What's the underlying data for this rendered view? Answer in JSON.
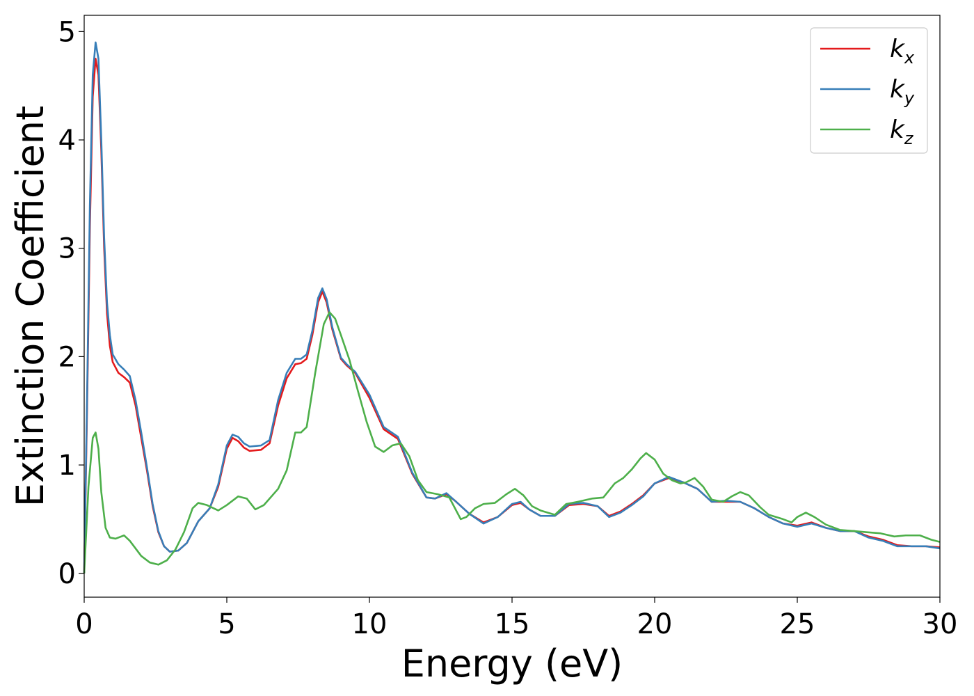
{
  "chart_data": {
    "type": "line",
    "xlabel": "Energy (eV)",
    "ylabel": "Extinction Coefficient",
    "xlim": [
      0,
      30
    ],
    "ylim": [
      -0.22,
      5.15
    ],
    "xticks": [
      0,
      5,
      10,
      15,
      20,
      25,
      30
    ],
    "yticks": [
      0,
      1,
      2,
      3,
      4,
      5
    ],
    "grid": false,
    "legend_position": "top-right",
    "series": [
      {
        "name": "k_x",
        "legend": {
          "base": "k",
          "sub": "x"
        },
        "color": "#e41a1c",
        "points": [
          [
            0,
            0
          ],
          [
            0.1,
            1.5
          ],
          [
            0.2,
            3.2
          ],
          [
            0.3,
            4.4
          ],
          [
            0.4,
            4.75
          ],
          [
            0.5,
            4.6
          ],
          [
            0.6,
            3.9
          ],
          [
            0.7,
            3.0
          ],
          [
            0.8,
            2.4
          ],
          [
            0.9,
            2.1
          ],
          [
            1.0,
            1.95
          ],
          [
            1.2,
            1.85
          ],
          [
            1.4,
            1.81
          ],
          [
            1.6,
            1.76
          ],
          [
            1.8,
            1.55
          ],
          [
            2.0,
            1.25
          ],
          [
            2.2,
            0.95
          ],
          [
            2.4,
            0.62
          ],
          [
            2.6,
            0.38
          ],
          [
            2.8,
            0.25
          ],
          [
            3.0,
            0.2
          ],
          [
            3.3,
            0.21
          ],
          [
            3.6,
            0.28
          ],
          [
            4.0,
            0.48
          ],
          [
            4.4,
            0.6
          ],
          [
            4.7,
            0.8
          ],
          [
            5.0,
            1.15
          ],
          [
            5.2,
            1.25
          ],
          [
            5.4,
            1.22
          ],
          [
            5.6,
            1.16
          ],
          [
            5.8,
            1.13
          ],
          [
            6.2,
            1.14
          ],
          [
            6.5,
            1.2
          ],
          [
            6.8,
            1.55
          ],
          [
            7.1,
            1.8
          ],
          [
            7.4,
            1.93
          ],
          [
            7.6,
            1.94
          ],
          [
            7.8,
            1.98
          ],
          [
            8.0,
            2.2
          ],
          [
            8.2,
            2.5
          ],
          [
            8.35,
            2.6
          ],
          [
            8.5,
            2.5
          ],
          [
            8.7,
            2.25
          ],
          [
            9.0,
            1.98
          ],
          [
            9.2,
            1.92
          ],
          [
            9.5,
            1.85
          ],
          [
            10.0,
            1.62
          ],
          [
            10.5,
            1.33
          ],
          [
            11.0,
            1.24
          ],
          [
            11.5,
            0.92
          ],
          [
            12.0,
            0.7
          ],
          [
            12.3,
            0.69
          ],
          [
            12.7,
            0.73
          ],
          [
            13.0,
            0.67
          ],
          [
            13.5,
            0.55
          ],
          [
            14.0,
            0.47
          ],
          [
            14.5,
            0.52
          ],
          [
            15.0,
            0.63
          ],
          [
            15.3,
            0.65
          ],
          [
            15.6,
            0.59
          ],
          [
            16.0,
            0.53
          ],
          [
            16.5,
            0.53
          ],
          [
            17.0,
            0.63
          ],
          [
            17.5,
            0.64
          ],
          [
            18.0,
            0.62
          ],
          [
            18.4,
            0.53
          ],
          [
            18.8,
            0.57
          ],
          [
            19.2,
            0.64
          ],
          [
            19.6,
            0.72
          ],
          [
            20.0,
            0.83
          ],
          [
            20.5,
            0.88
          ],
          [
            21.0,
            0.84
          ],
          [
            21.5,
            0.78
          ],
          [
            22.0,
            0.66
          ],
          [
            22.5,
            0.66
          ],
          [
            23.0,
            0.66
          ],
          [
            23.5,
            0.6
          ],
          [
            24.0,
            0.52
          ],
          [
            24.5,
            0.46
          ],
          [
            25.0,
            0.44
          ],
          [
            25.5,
            0.47
          ],
          [
            26.0,
            0.42
          ],
          [
            26.5,
            0.39
          ],
          [
            27.0,
            0.39
          ],
          [
            27.5,
            0.34
          ],
          [
            28.0,
            0.31
          ],
          [
            28.5,
            0.26
          ],
          [
            29.0,
            0.25
          ],
          [
            29.5,
            0.25
          ],
          [
            30.0,
            0.24
          ]
        ]
      },
      {
        "name": "k_y",
        "legend": {
          "base": "k",
          "sub": "y"
        },
        "color": "#377eb8",
        "points": [
          [
            0,
            0
          ],
          [
            0.1,
            1.6
          ],
          [
            0.2,
            3.4
          ],
          [
            0.3,
            4.6
          ],
          [
            0.4,
            4.9
          ],
          [
            0.5,
            4.75
          ],
          [
            0.6,
            4.0
          ],
          [
            0.7,
            3.1
          ],
          [
            0.8,
            2.5
          ],
          [
            0.9,
            2.2
          ],
          [
            1.0,
            2.02
          ],
          [
            1.2,
            1.93
          ],
          [
            1.4,
            1.88
          ],
          [
            1.6,
            1.82
          ],
          [
            1.8,
            1.6
          ],
          [
            2.0,
            1.3
          ],
          [
            2.2,
            0.98
          ],
          [
            2.4,
            0.64
          ],
          [
            2.6,
            0.39
          ],
          [
            2.8,
            0.25
          ],
          [
            3.0,
            0.2
          ],
          [
            3.3,
            0.21
          ],
          [
            3.6,
            0.28
          ],
          [
            4.0,
            0.48
          ],
          [
            4.4,
            0.6
          ],
          [
            4.7,
            0.82
          ],
          [
            5.0,
            1.18
          ],
          [
            5.2,
            1.28
          ],
          [
            5.4,
            1.26
          ],
          [
            5.6,
            1.2
          ],
          [
            5.8,
            1.17
          ],
          [
            6.2,
            1.18
          ],
          [
            6.5,
            1.23
          ],
          [
            6.8,
            1.6
          ],
          [
            7.1,
            1.85
          ],
          [
            7.4,
            1.98
          ],
          [
            7.6,
            1.98
          ],
          [
            7.8,
            2.02
          ],
          [
            8.0,
            2.24
          ],
          [
            8.2,
            2.54
          ],
          [
            8.35,
            2.63
          ],
          [
            8.5,
            2.53
          ],
          [
            8.7,
            2.27
          ],
          [
            9.0,
            1.99
          ],
          [
            9.2,
            1.93
          ],
          [
            9.5,
            1.86
          ],
          [
            10.0,
            1.65
          ],
          [
            10.5,
            1.35
          ],
          [
            11.0,
            1.26
          ],
          [
            11.5,
            0.93
          ],
          [
            12.0,
            0.7
          ],
          [
            12.3,
            0.69
          ],
          [
            12.7,
            0.74
          ],
          [
            13.0,
            0.67
          ],
          [
            13.5,
            0.55
          ],
          [
            14.0,
            0.46
          ],
          [
            14.5,
            0.52
          ],
          [
            15.0,
            0.64
          ],
          [
            15.3,
            0.66
          ],
          [
            15.6,
            0.59
          ],
          [
            16.0,
            0.53
          ],
          [
            16.5,
            0.53
          ],
          [
            17.0,
            0.64
          ],
          [
            17.5,
            0.65
          ],
          [
            18.0,
            0.62
          ],
          [
            18.4,
            0.52
          ],
          [
            18.8,
            0.56
          ],
          [
            19.2,
            0.63
          ],
          [
            19.6,
            0.71
          ],
          [
            20.0,
            0.83
          ],
          [
            20.5,
            0.89
          ],
          [
            21.0,
            0.84
          ],
          [
            21.5,
            0.78
          ],
          [
            22.0,
            0.66
          ],
          [
            22.5,
            0.67
          ],
          [
            23.0,
            0.66
          ],
          [
            23.5,
            0.6
          ],
          [
            24.0,
            0.52
          ],
          [
            24.5,
            0.46
          ],
          [
            25.0,
            0.43
          ],
          [
            25.5,
            0.46
          ],
          [
            26.0,
            0.42
          ],
          [
            26.5,
            0.39
          ],
          [
            27.0,
            0.39
          ],
          [
            27.5,
            0.33
          ],
          [
            28.0,
            0.3
          ],
          [
            28.5,
            0.25
          ],
          [
            29.0,
            0.25
          ],
          [
            29.5,
            0.25
          ],
          [
            30.0,
            0.23
          ]
        ]
      },
      {
        "name": "k_z",
        "legend": {
          "base": "k",
          "sub": "z"
        },
        "color": "#4daf4a",
        "points": [
          [
            0,
            0
          ],
          [
            0.15,
            0.8
          ],
          [
            0.3,
            1.25
          ],
          [
            0.4,
            1.3
          ],
          [
            0.5,
            1.15
          ],
          [
            0.6,
            0.75
          ],
          [
            0.75,
            0.42
          ],
          [
            0.9,
            0.33
          ],
          [
            1.1,
            0.32
          ],
          [
            1.4,
            0.35
          ],
          [
            1.6,
            0.3
          ],
          [
            2.0,
            0.16
          ],
          [
            2.3,
            0.1
          ],
          [
            2.6,
            0.08
          ],
          [
            2.9,
            0.12
          ],
          [
            3.2,
            0.22
          ],
          [
            3.5,
            0.38
          ],
          [
            3.8,
            0.6
          ],
          [
            4.0,
            0.65
          ],
          [
            4.3,
            0.63
          ],
          [
            4.7,
            0.58
          ],
          [
            5.0,
            0.63
          ],
          [
            5.4,
            0.71
          ],
          [
            5.7,
            0.69
          ],
          [
            6.0,
            0.59
          ],
          [
            6.3,
            0.63
          ],
          [
            6.8,
            0.78
          ],
          [
            7.1,
            0.95
          ],
          [
            7.4,
            1.3
          ],
          [
            7.6,
            1.3
          ],
          [
            7.8,
            1.35
          ],
          [
            8.1,
            1.85
          ],
          [
            8.4,
            2.3
          ],
          [
            8.6,
            2.41
          ],
          [
            8.8,
            2.35
          ],
          [
            9.0,
            2.2
          ],
          [
            9.3,
            1.97
          ],
          [
            9.6,
            1.68
          ],
          [
            9.9,
            1.4
          ],
          [
            10.2,
            1.17
          ],
          [
            10.5,
            1.12
          ],
          [
            10.8,
            1.18
          ],
          [
            11.1,
            1.2
          ],
          [
            11.4,
            1.08
          ],
          [
            11.7,
            0.86
          ],
          [
            12.0,
            0.75
          ],
          [
            12.4,
            0.73
          ],
          [
            12.8,
            0.7
          ],
          [
            13.2,
            0.5
          ],
          [
            13.4,
            0.52
          ],
          [
            13.7,
            0.6
          ],
          [
            14.0,
            0.64
          ],
          [
            14.4,
            0.65
          ],
          [
            14.8,
            0.73
          ],
          [
            15.1,
            0.78
          ],
          [
            15.4,
            0.72
          ],
          [
            15.7,
            0.62
          ],
          [
            16.0,
            0.58
          ],
          [
            16.5,
            0.54
          ],
          [
            16.9,
            0.64
          ],
          [
            17.3,
            0.66
          ],
          [
            17.8,
            0.69
          ],
          [
            18.2,
            0.7
          ],
          [
            18.6,
            0.83
          ],
          [
            18.9,
            0.88
          ],
          [
            19.2,
            0.96
          ],
          [
            19.5,
            1.06
          ],
          [
            19.7,
            1.11
          ],
          [
            20.0,
            1.05
          ],
          [
            20.3,
            0.92
          ],
          [
            20.6,
            0.86
          ],
          [
            20.9,
            0.83
          ],
          [
            21.1,
            0.84
          ],
          [
            21.4,
            0.88
          ],
          [
            21.7,
            0.8
          ],
          [
            22.0,
            0.68
          ],
          [
            22.4,
            0.66
          ],
          [
            22.7,
            0.71
          ],
          [
            23.0,
            0.75
          ],
          [
            23.3,
            0.72
          ],
          [
            23.7,
            0.61
          ],
          [
            24.0,
            0.54
          ],
          [
            24.5,
            0.5
          ],
          [
            24.8,
            0.47
          ],
          [
            25.0,
            0.52
          ],
          [
            25.3,
            0.56
          ],
          [
            25.6,
            0.52
          ],
          [
            26.0,
            0.45
          ],
          [
            26.5,
            0.4
          ],
          [
            27.0,
            0.39
          ],
          [
            27.4,
            0.38
          ],
          [
            27.9,
            0.37
          ],
          [
            28.4,
            0.34
          ],
          [
            28.8,
            0.35
          ],
          [
            29.3,
            0.35
          ],
          [
            29.7,
            0.31
          ],
          [
            30.0,
            0.29
          ]
        ]
      }
    ]
  }
}
